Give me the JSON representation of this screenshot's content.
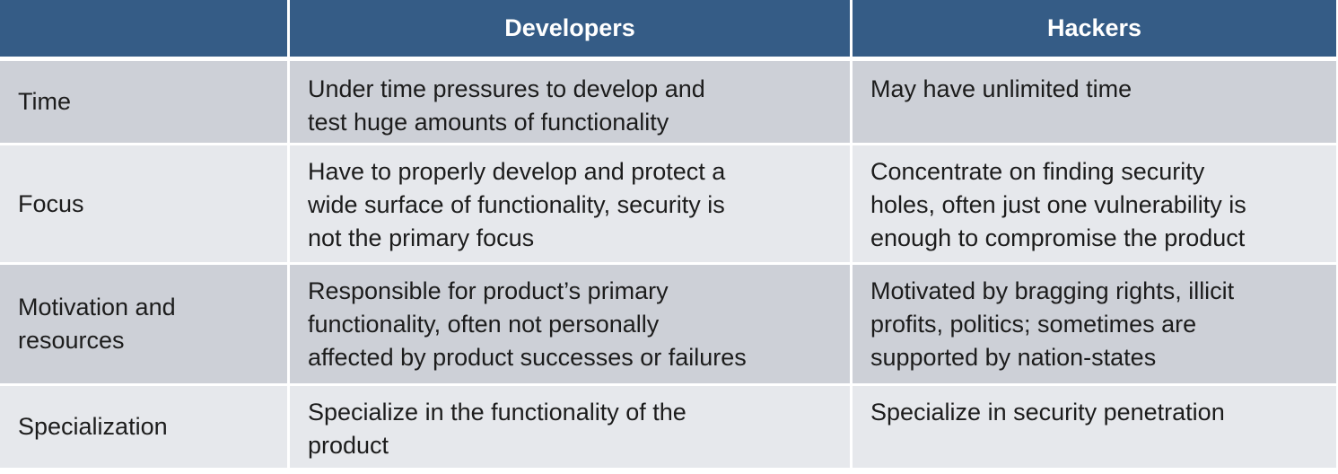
{
  "table": {
    "header": {
      "corner": "",
      "col1": "Developers",
      "col2": "Hackers"
    },
    "rows": [
      {
        "label": "Time",
        "developers": [
          "Under time pressures to develop and",
          "test huge amounts of functionality"
        ],
        "hackers": [
          "May have unlimited time"
        ]
      },
      {
        "label": "Focus",
        "developers": [
          "Have to properly develop and protect a",
          "wide surface of functionality, security is",
          "not the primary focus"
        ],
        "hackers": [
          "Concentrate on finding security",
          "holes, often just one vulnerability is",
          "enough to compromise the product"
        ]
      },
      {
        "label_lines": [
          "Motivation and",
          "resources"
        ],
        "developers": [
          "Responsible for product’s primary",
          "functionality, often not personally",
          "affected by product successes or failures"
        ],
        "hackers": [
          "Motivated by bragging rights, illicit",
          "profits, politics; sometimes are",
          "supported by nation-states"
        ]
      },
      {
        "label": "Specialization",
        "developers": [
          "Specialize in the functionality of the",
          "product"
        ],
        "hackers": [
          "Specialize in security penetration"
        ]
      }
    ]
  },
  "colors": {
    "header_bg": "#355c86",
    "header_text": "#ffffff",
    "row_dark": "#cdd0d7",
    "row_light": "#e6e8ec",
    "cell_text": "#1c1c1c"
  }
}
